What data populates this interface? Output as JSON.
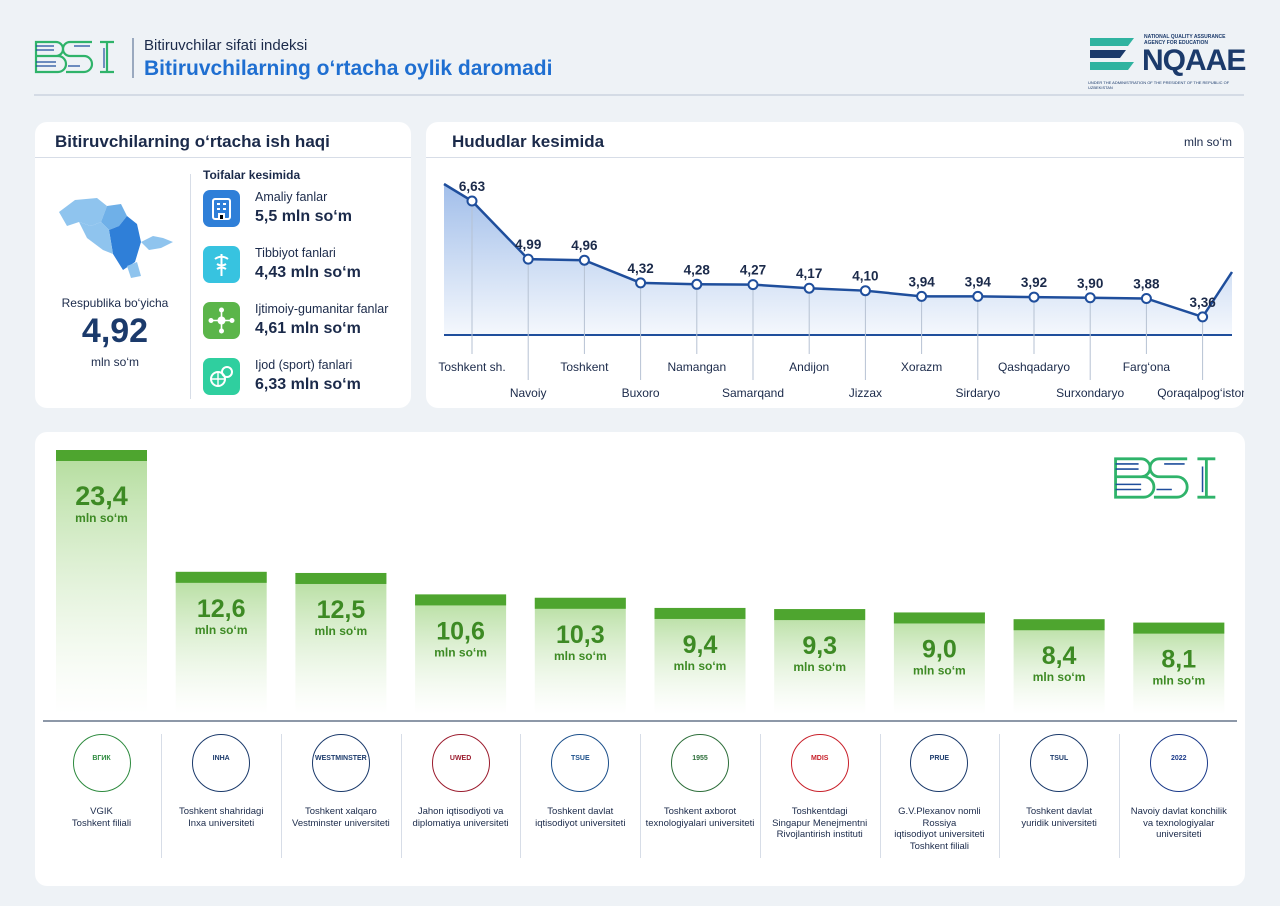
{
  "header": {
    "subtitle": "Bitiruvchilar sifati indeksi",
    "title": "Bitiruvchilarning o‘rtacha oylik daromadi",
    "logo_left": "BSI",
    "logo_right": "NQAAE",
    "logo_right_top": "NATIONAL QUALITY ASSURANCE AGENCY FOR EDUCATION",
    "logo_right_bottom": "UNDER THE ADMINISTRATION OF THE PRESIDENT OF THE REPUBLIC OF UZBEKISTAN"
  },
  "salary_card": {
    "title": "Bitiruvchilarning o‘rtacha ish haqi",
    "republic_label": "Respublika bo‘yicha",
    "republic_value": "4,92",
    "republic_unit": "mln so‘m",
    "categories_title": "Toifalar kesimida",
    "categories": [
      {
        "name": "Amaliy fanlar",
        "value": "5,5 mln so‘m",
        "icon": "building-icon",
        "color": "#2f7fd8"
      },
      {
        "name": "Tibbiyot fanlari",
        "value": "4,43 mln so‘m",
        "icon": "medical-caduceus-icon",
        "color": "#37c3e0"
      },
      {
        "name": "Ijtimoiy-gumanitar fanlar",
        "value": "4,61 mln so‘m",
        "icon": "network-icon",
        "color": "#5bb54a"
      },
      {
        "name": "Ijod (sport) fanlari",
        "value": "6,33 mln so‘m",
        "icon": "sport-balls-icon",
        "color": "#2fcf9f"
      }
    ]
  },
  "regions_card": {
    "title": "Hududlar kesimida",
    "unit": "mln so‘m"
  },
  "universities_card": {
    "watermark": "BSI",
    "unit_label": "mln so‘m"
  },
  "chart_data": [
    {
      "type": "line",
      "title": "Hududlar kesimida",
      "ylabel": "mln so‘m",
      "categories": [
        "Toshkent sh.",
        "Navoiy",
        "Toshkent",
        "Buxoro",
        "Namangan",
        "Samarqand",
        "Andijon",
        "Jizzax",
        "Xorazm",
        "Sirdaryo",
        "Qashqadaryo",
        "Surxondaryo",
        "Farg‘ona",
        "Qoraqalpog‘iston"
      ],
      "values": [
        6.63,
        4.99,
        4.96,
        4.32,
        4.28,
        4.27,
        4.17,
        4.1,
        3.94,
        3.94,
        3.92,
        3.9,
        3.88,
        3.36
      ],
      "labels": [
        "6,63",
        "4,99",
        "4,96",
        "4,32",
        "4,28",
        "4,27",
        "4,17",
        "4,10",
        "3,94",
        "3,94",
        "3,92",
        "3,90",
        "3,88",
        "3,36"
      ],
      "grid": false,
      "accent": "#1f4e9c"
    },
    {
      "type": "bar",
      "categories": [
        "VGIK Toshkent filiali",
        "Toshkent shahridagi Inxa universiteti",
        "Toshkent xalqaro Vestminster universiteti",
        "Jahon iqtisodiyoti va diplomatiya universiteti",
        "Toshkent davlat iqtisodiyot universiteti",
        "Toshkent axborot texnologiyalari universiteti",
        "Toshkentdagi Singapur Menejmentni Rivojlantirish instituti",
        "G.V.Plexanov nomli Rossiya iqtisodiyot universiteti Toshkent filiali",
        "Toshkent davlat yuridik universiteti",
        "Navoiy davlat konchilik va texnologiyalar universiteti"
      ],
      "values": [
        23.4,
        12.6,
        12.5,
        10.6,
        10.3,
        9.4,
        9.3,
        9.0,
        8.4,
        8.1
      ],
      "labels": [
        "23,4",
        "12,6",
        "12,5",
        "10,6",
        "10,3",
        "9,4",
        "9,3",
        "9,0",
        "8,4",
        "8,1"
      ],
      "unit": "mln so‘m",
      "ylim": [
        0,
        23.4
      ],
      "accent": "#4ea52f"
    }
  ],
  "university_logos": [
    {
      "text": "ВГИК",
      "color": "#2d8a3e"
    },
    {
      "text": "INHA",
      "color": "#1b3a6b"
    },
    {
      "text": "WESTMINSTER",
      "color": "#1b3a6b"
    },
    {
      "text": "UWED",
      "color": "#9b1c2e"
    },
    {
      "text": "TSUE",
      "color": "#1b4f8a"
    },
    {
      "text": "1955",
      "color": "#2d6e3a"
    },
    {
      "text": "MDIS",
      "color": "#c8202a"
    },
    {
      "text": "PRUE",
      "color": "#1b3a6b"
    },
    {
      "text": "TSUL",
      "color": "#1b3a6b"
    },
    {
      "text": "2022",
      "color": "#1b3a8a"
    }
  ],
  "university_names": [
    [
      "VGIK",
      "Toshkent filiali"
    ],
    [
      "Toshkent shahridagi",
      "Inxa universiteti"
    ],
    [
      "Toshkent xalqaro",
      "Vestminster universiteti"
    ],
    [
      "Jahon iqtisodiyoti va",
      "diplomatiya universiteti"
    ],
    [
      "Toshkent davlat",
      "iqtisodiyot universiteti"
    ],
    [
      "Toshkent axborot",
      "texnologiyalari universiteti"
    ],
    [
      "Toshkentdagi",
      "Singapur Menejmentni",
      "Rivojlantirish instituti"
    ],
    [
      "G.V.Plexanov nomli",
      "Rossiya",
      "iqtisodiyot universiteti",
      "Toshkent filiali"
    ],
    [
      "Toshkent davlat",
      "yuridik universiteti"
    ],
    [
      "Navoiy davlat konchilik",
      "va texnologiyalar",
      "universiteti"
    ]
  ]
}
